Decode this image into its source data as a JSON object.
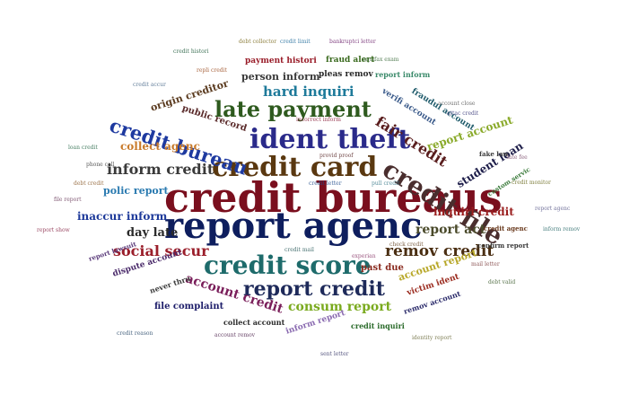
{
  "words": [
    {
      "id": "credit-bureaus",
      "text": "credit bureaus",
      "color": "#7a0f1e"
    },
    {
      "id": "report-agenc",
      "text": "report agenc",
      "color": "#0e1e5e"
    },
    {
      "id": "credit-card",
      "text": "credit card",
      "color": "#5a3810"
    },
    {
      "id": "ident-theft",
      "text": "ident theft",
      "color": "#2a2a8a"
    },
    {
      "id": "credit-score",
      "text": "credit score",
      "color": "#1e6b6b"
    },
    {
      "id": "report-credit",
      "text": "report credit",
      "color": "#1e2a5a"
    },
    {
      "id": "credit-file",
      "text": "credit file",
      "color": "#4a2e2e"
    },
    {
      "id": "late-payment",
      "text": "late payment",
      "color": "#2e5a1e"
    },
    {
      "id": "credit-bureau",
      "text": "credit bureau",
      "color": "#1e3aa0"
    },
    {
      "id": "inform-credit",
      "text": "inform credit",
      "color": "#3a3a3a"
    },
    {
      "id": "remov-credit",
      "text": "remov credit",
      "color": "#4a2e12"
    },
    {
      "id": "fair-credit",
      "text": "fair credit",
      "color": "#5a1e1e"
    },
    {
      "id": "hard-inquiri",
      "text": "hard inquiri",
      "color": "#1e7a9a"
    },
    {
      "id": "social-secur",
      "text": "social secur",
      "color": "#9a1e2a"
    },
    {
      "id": "consum-report",
      "text": "consum report",
      "color": "#7aaa1e"
    },
    {
      "id": "account-credit",
      "text": "account credit",
      "color": "#7a1e5a"
    },
    {
      "id": "report-act",
      "text": "report act",
      "color": "#4a4a2a"
    },
    {
      "id": "day-late",
      "text": "day late",
      "color": "#2a2a2a"
    },
    {
      "id": "inaccur-inform",
      "text": "inaccur inform",
      "color": "#1e3a9a"
    },
    {
      "id": "report-account",
      "text": "report account",
      "color": "#8aaa2a"
    },
    {
      "id": "student-loan",
      "text": "student loan",
      "color": "#1e1e4a"
    },
    {
      "id": "inquiri-credit",
      "text": "inquiri credit",
      "color": "#9a1e1e"
    },
    {
      "id": "person-inform",
      "text": "person inform",
      "color": "#3a3a3a"
    },
    {
      "id": "origin-creditor",
      "text": "origin creditor",
      "color": "#5a3a1e"
    },
    {
      "id": "collect-agenc",
      "text": "collect agenc",
      "color": "#c87a2a"
    },
    {
      "id": "polic-report",
      "text": "polic report",
      "color": "#2a7ab0"
    },
    {
      "id": "public-record",
      "text": "public record",
      "color": "#5a2a2a"
    },
    {
      "id": "account-report",
      "text": "account report",
      "color": "#b8a82a"
    },
    {
      "id": "dispute-account",
      "text": "dispute account",
      "color": "#4a2a6a"
    },
    {
      "id": "file-complaint",
      "text": "file complaint",
      "color": "#1e1e6a"
    },
    {
      "id": "past-due",
      "text": "past due",
      "color": "#8a2a1e"
    },
    {
      "id": "payment-histori",
      "text": "payment histori",
      "color": "#9a1e2a"
    },
    {
      "id": "fraud-alert",
      "text": "fraud alert",
      "color": "#3a6a1e"
    },
    {
      "id": "pleas-remov",
      "text": "pleas remov",
      "color": "#2a2a2a"
    },
    {
      "id": "report-inform",
      "text": "report inform",
      "color": "#3a8a6a"
    },
    {
      "id": "collect-account",
      "text": "collect account",
      "color": "#2a2a2a"
    },
    {
      "id": "inform-report",
      "text": "inform report",
      "color": "#8a6ab0"
    },
    {
      "id": "victim-ident",
      "text": "victim ident",
      "color": "#9a2a1e"
    },
    {
      "id": "remov-account",
      "text": "remov account",
      "color": "#2a2a6a"
    },
    {
      "id": "credit-inquiri",
      "text": "credit inquiri",
      "color": "#2a6a2a"
    },
    {
      "id": "verifi-account",
      "text": "verifi account",
      "color": "#3a5a8a"
    },
    {
      "id": "fraudul-account",
      "text": "fraudul account",
      "color": "#1e5a6a"
    },
    {
      "id": "custom-servic",
      "text": "custom servic",
      "color": "#3a7a3a"
    },
    {
      "id": "confirm-report",
      "text": "confirm report",
      "color": "#3a3a3a"
    },
    {
      "id": "credit-agenc",
      "text": "credit agenc",
      "color": "#6a3a1e"
    },
    {
      "id": "report-lawsuit",
      "text": "report lawsuit",
      "color": "#5a3a7a"
    },
    {
      "id": "never-thru",
      "text": "never thru",
      "color": "#3a3a3a"
    },
    {
      "id": "fake-law",
      "text": "fake law",
      "color": "#3a3a3a"
    },
    {
      "id": "incorrect-inform",
      "text": "incorrect inform",
      "color": "#8a1e3a"
    },
    {
      "id": "credit-letter",
      "text": "credit letter",
      "color": "#1e4a8a"
    },
    {
      "id": "pull-credit",
      "text": "pull credit",
      "color": "#3a7a8a"
    },
    {
      "id": "check-credit",
      "text": "check credit",
      "color": "#6a4a2a"
    },
    {
      "id": "experian",
      "text": "experian",
      "color": "#8a3a6a"
    },
    {
      "id": "credit-mail",
      "text": "credit mail",
      "color": "#2a5a5a"
    },
    {
      "id": "repli-credit",
      "text": "repli credit",
      "color": "#9a4a1e"
    },
    {
      "id": "equifax-exam",
      "text": "equifax exam",
      "color": "#3a6a3a"
    },
    {
      "id": "bankruptci-letter",
      "text": "bankruptci letter",
      "color": "#6a1e6a"
    },
    {
      "id": "credit-limit",
      "text": "credit limit",
      "color": "#1e6a9a"
    },
    {
      "id": "debt-collector",
      "text": "debt collector",
      "color": "#7a6a1e"
    },
    {
      "id": "account-close",
      "text": "account close",
      "color": "#5a5a5a"
    },
    {
      "id": "attac-credit",
      "text": "attac credit",
      "color": "#3a3a7a"
    },
    {
      "id": "provid-proof",
      "text": "provid proof",
      "color": "#5a2a2a"
    },
    {
      "id": "loan-credit",
      "text": "loan credit",
      "color": "#2a6a4a"
    },
    {
      "id": "debt-credit",
      "text": "debt credit",
      "color": "#8a5a2a"
    },
    {
      "id": "phone-call",
      "text": "phone call",
      "color": "#3a3a3a"
    },
    {
      "id": "credit-monitor",
      "text": "credit monitor",
      "color": "#6a6a1e"
    },
    {
      "id": "account-remov",
      "text": "account remov",
      "color": "#4a1e4a"
    },
    {
      "id": "credit-reason",
      "text": "credit reason",
      "color": "#2a4a6a"
    },
    {
      "id": "mail-letter",
      "text": "mail letter",
      "color": "#7a3a3a"
    },
    {
      "id": "debt-valid",
      "text": "debt valid",
      "color": "#3a5a2a"
    },
    {
      "id": "report-agenc-small",
      "text": "report agenc",
      "color": "#5a5a8a"
    },
    {
      "id": "file-report",
      "text": "file report",
      "color": "#6a3a5a"
    },
    {
      "id": "inform-remov",
      "text": "inform remov",
      "color": "#2a6a6a"
    },
    {
      "id": "report-show",
      "text": "report show",
      "color": "#8a2a4a"
    },
    {
      "id": "sent-letter",
      "text": "sent letter",
      "color": "#3a3a6a"
    },
    {
      "id": "identity-report",
      "text": "identity report",
      "color": "#6a6a3a"
    },
    {
      "id": "credit-histori",
      "text": "credit histori",
      "color": "#1e5a3a"
    },
    {
      "id": "late-fee",
      "text": "late fee",
      "color": "#7a4a6a"
    },
    {
      "id": "credit-accur",
      "text": "credit accur",
      "color": "#4a6a8a"
    }
  ]
}
